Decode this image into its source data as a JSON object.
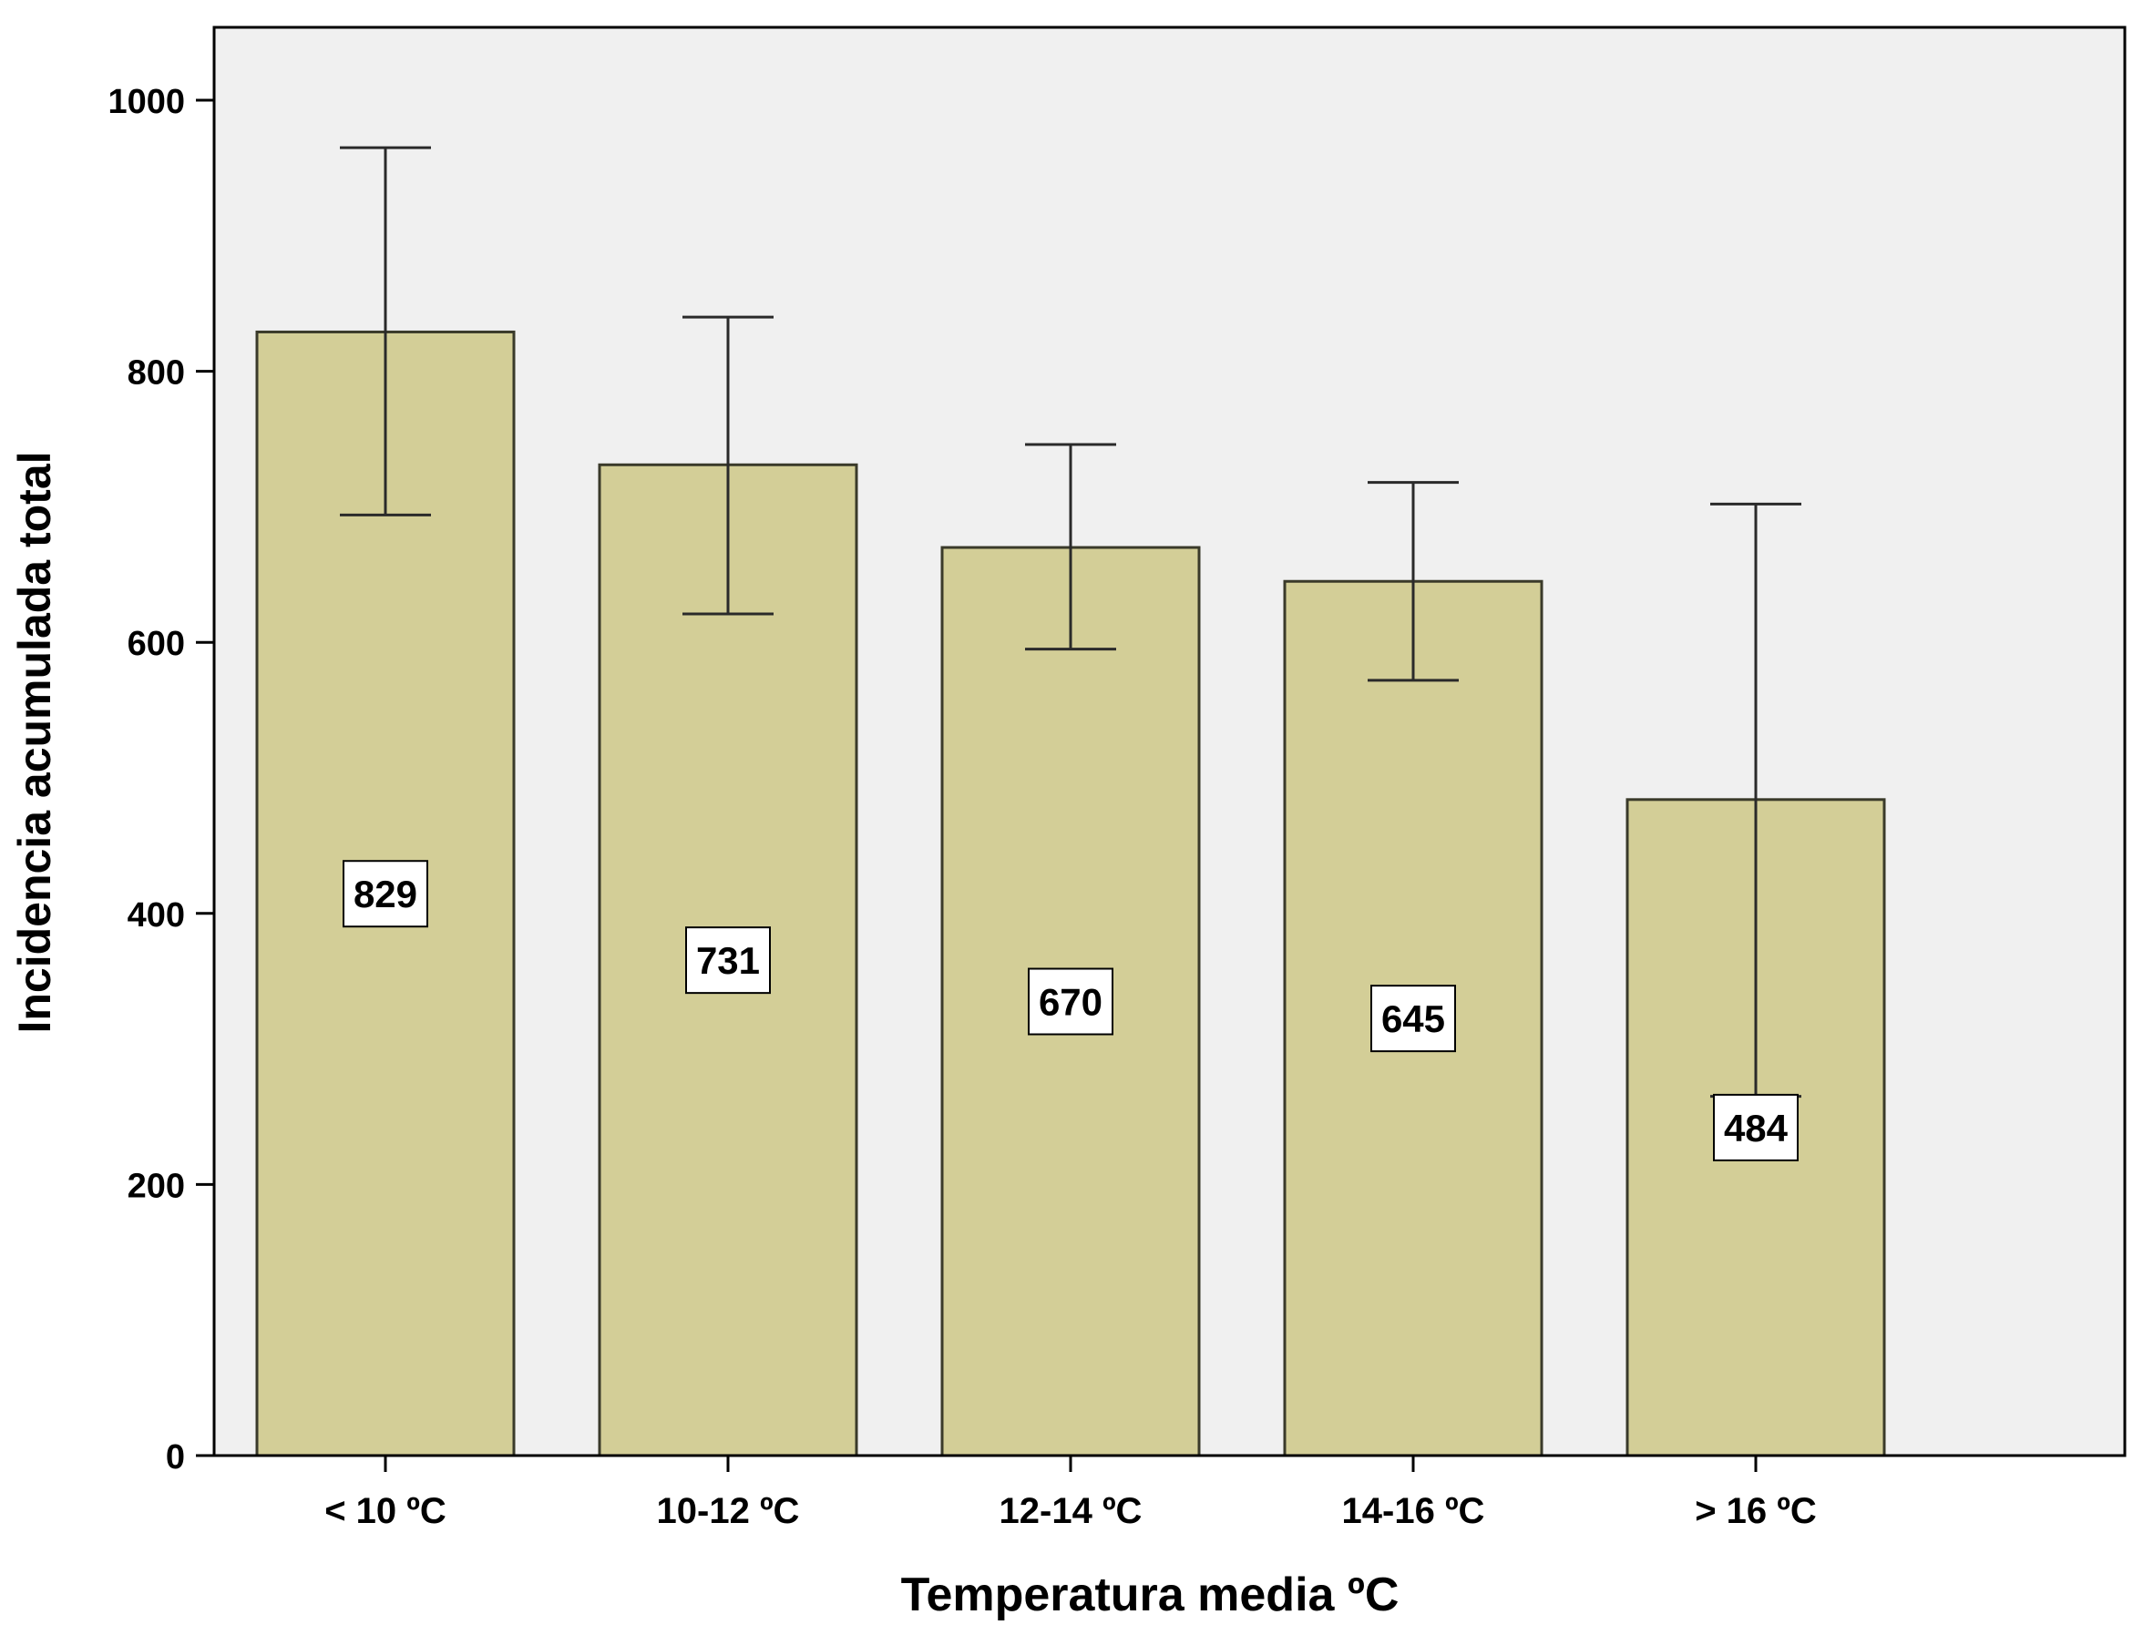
{
  "colors": {
    "plot_background": "#f0f0f0",
    "bar_fill": "#d3ce97",
    "bar_stroke": "#3a3a2a",
    "axis": "#000000",
    "error_bar": "#2a2a2a",
    "label_box_fill": "#ffffff"
  },
  "chart_data": {
    "type": "bar",
    "title": "",
    "xlabel": "Temperatura media ºC",
    "ylabel": "Incidencia acumulada total",
    "categories": [
      "< 10 ºC",
      "10-12 ºC",
      "12-14 ºC",
      "14-16 ºC",
      "> 16 ºC"
    ],
    "values": [
      829,
      731,
      670,
      645,
      484
    ],
    "data_labels": [
      "829",
      "731",
      "670",
      "645",
      "484"
    ],
    "error_bars": {
      "lower": [
        694,
        621,
        595,
        572,
        265
      ],
      "upper": [
        965,
        840,
        746,
        718,
        702
      ]
    },
    "ylim": [
      0,
      1050
    ],
    "yticks": [
      0,
      200,
      400,
      600,
      800,
      1000
    ],
    "ytick_labels": [
      "0",
      "200",
      "400",
      "600",
      "800",
      "1000"
    ],
    "grid": false,
    "legend": "none"
  }
}
